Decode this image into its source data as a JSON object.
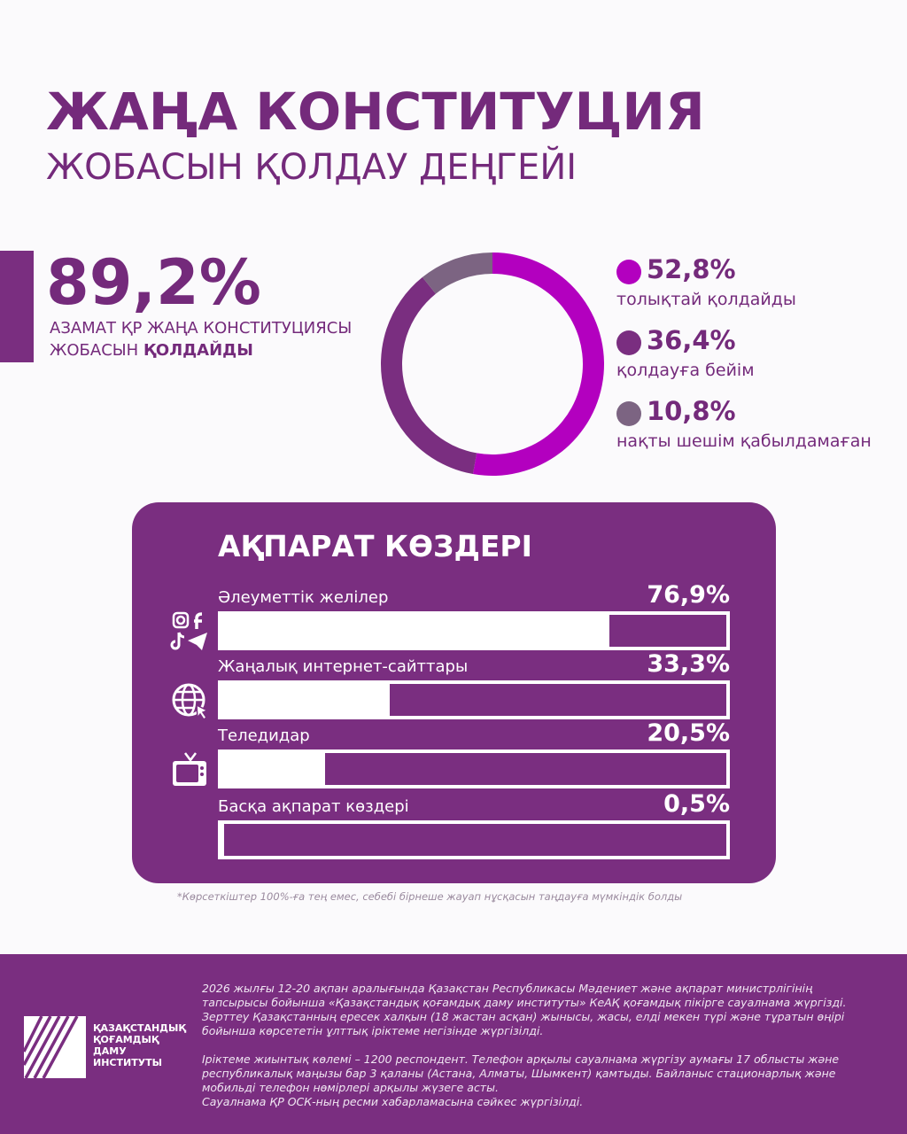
{
  "title": {
    "line1": "ЖАҢА КОНСТИТУЦИЯ",
    "line2": "ЖОБАСЫН ҚОЛДАУ ДЕҢГЕЙІ"
  },
  "headline": {
    "value": "89,2%",
    "text": "АЗАМАТ ҚР ЖАҢА КОНСТИТУЦИЯСЫ",
    "text2": "ЖОБАСЫН",
    "text_bold": "ҚОЛДАЙДЫ"
  },
  "chart_data": [
    {
      "type": "pie",
      "donut": true,
      "start": "top",
      "direction": "clockwise",
      "slices": [
        {
          "label": "толықтай қолдайды",
          "value": 52.8,
          "display": "52,8%",
          "color": "#b300bf"
        },
        {
          "label": "қолдауға бейім",
          "value": 36.4,
          "display": "36,4%",
          "color": "#7a2e80"
        },
        {
          "label": "нақты шешім қабылдамаған",
          "value": 10.8,
          "display": "10,8%",
          "color": "#7c6482"
        }
      ],
      "legend": "right"
    },
    {
      "type": "bar",
      "orientation": "horizontal",
      "title": "АҚПАРАТ КӨЗДЕРІ",
      "xlim": [
        0,
        100
      ],
      "categories": [
        "Әлеуметтік желілер",
        "Жаңалық интернет-сайттары",
        "Теледидар",
        "Басқа ақпарат көздері"
      ],
      "values": [
        76.9,
        33.3,
        20.5,
        0.5
      ],
      "labels": [
        "76,9%",
        "33,3%",
        "20,5%",
        "0,5%"
      ],
      "icons": [
        "social-media-icons",
        "globe-cursor-icon",
        "tv-icon",
        ""
      ],
      "fill_color": "#ffffff",
      "background_color": "#7a2e80"
    }
  ],
  "note": "*Көрсеткіштер 100%-ға тең емес, себебі бірнеше жауап нұсқасын таңдауға мүмкіндік болды",
  "footer": {
    "logo_text": [
      "ҚАЗАҚСТАНДЫҚ",
      "ҚОҒАМДЫҚ",
      "ДАМУ",
      "ИНСТИТУТЫ"
    ],
    "p1": "2026 жылғы 12-20 ақпан аралығында Қазақстан Республикасы Мәдениет және ақпарат министрлігінің тапсырысы бойынша «Қазақстандық қоғамдық даму институты» КеАҚ қоғамдық пікірге сауалнама жүргізді. Зерттеу Қазақстанның ересек халқын (18 жастан асқан) жынысы, жасы, елді мекен түрі және тұратын өңірі бойынша көрсететін ұлттық іріктеме негізінде жүргізілді.",
    "p2": "Іріктеме жиынтық көлемі – 1200 респондент. Телефон арқылы сауалнама жүргізу аумағы 17 облысты және республикалық маңызы бар 3 қаланы (Астана, Алматы, Шымкент) қамтыды. Байланыс стационарлық және мобильді телефон нөмірлері арқылы жүзеге асты.",
    "p3": "Сауалнама ҚР ОСК-ның ресми хабарламасына сәйкес жүргізілді."
  },
  "colors": {
    "primary": "#7a2e80",
    "magenta": "#b300bf",
    "grey": "#7c6482"
  }
}
